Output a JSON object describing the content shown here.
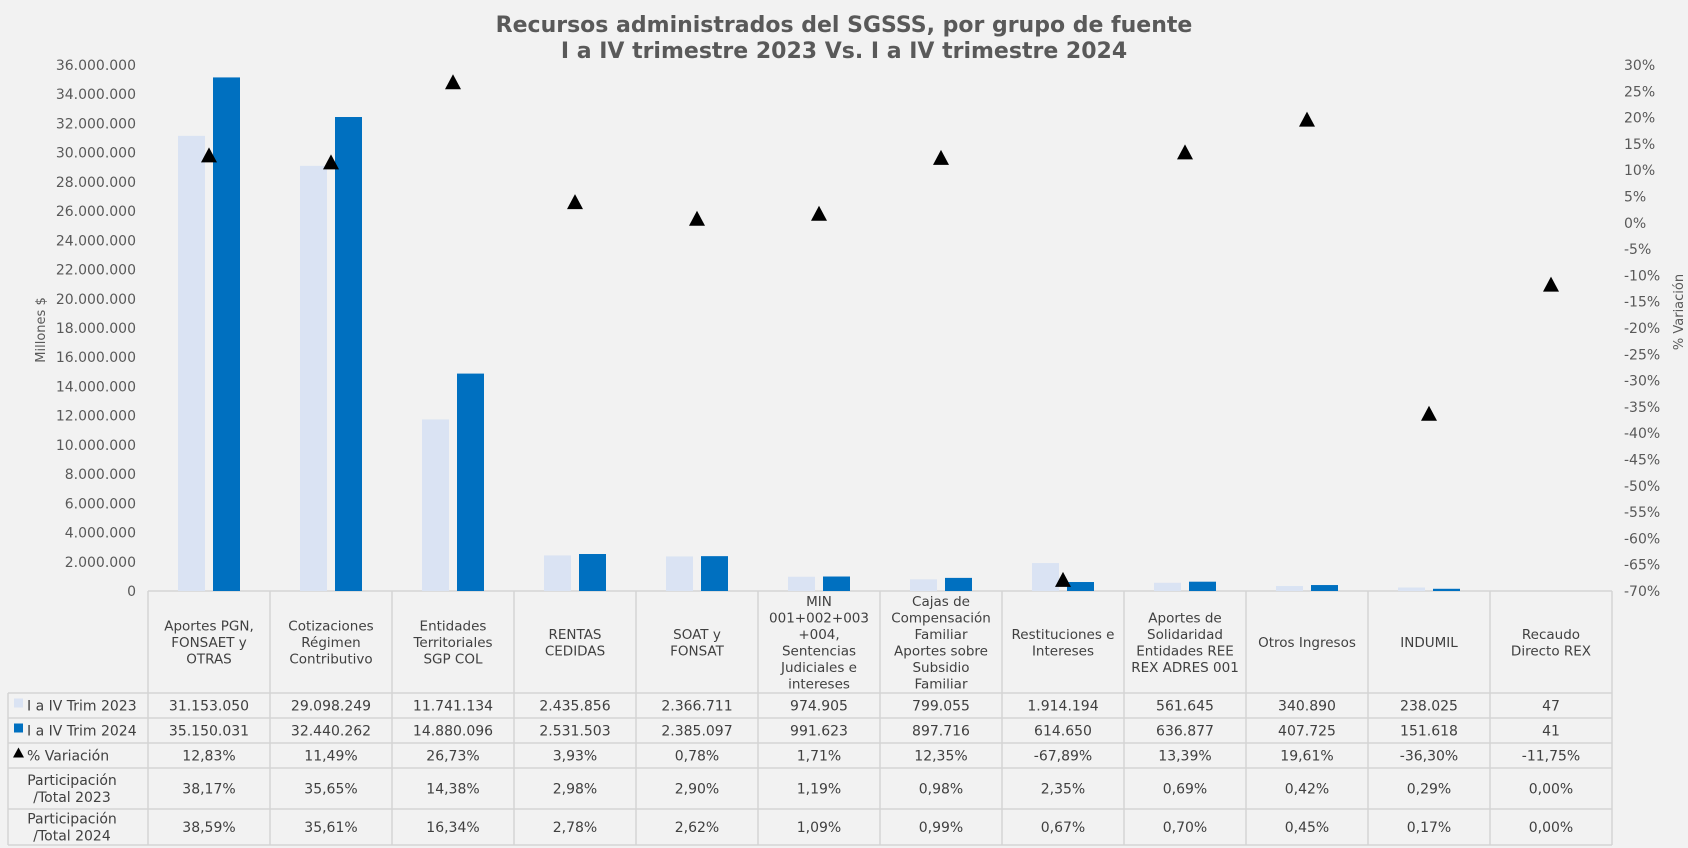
{
  "chart_data": {
    "type": "bar",
    "title": "Recursos administrados del SGSSS, por grupo de fuente",
    "subtitle": "I a IV trimestre 2023 Vs. I a IV trimestre 2024",
    "ylabel": "Millones $",
    "y2label": "% Variación",
    "ylim": [
      0,
      36000000
    ],
    "y2lim": [
      -70,
      30
    ],
    "yticks": [
      "0",
      "2.000.000",
      "4.000.000",
      "6.000.000",
      "8.000.000",
      "10.000.000",
      "12.000.000",
      "14.000.000",
      "16.000.000",
      "18.000.000",
      "20.000.000",
      "22.000.000",
      "24.000.000",
      "26.000.000",
      "28.000.000",
      "30.000.000",
      "32.000.000",
      "34.000.000",
      "36.000.000"
    ],
    "y2ticks": [
      "-70%",
      "-65%",
      "-60%",
      "-55%",
      "-50%",
      "-45%",
      "-40%",
      "-35%",
      "-30%",
      "-25%",
      "-20%",
      "-15%",
      "-10%",
      "-5%",
      "0%",
      "5%",
      "10%",
      "15%",
      "20%",
      "25%",
      "30%"
    ],
    "categories": [
      [
        "Aportes PGN,",
        "FONSAET y",
        "OTRAS"
      ],
      [
        "Cotizaciones",
        "Régimen",
        "Contributivo"
      ],
      [
        "Entidades",
        "Territoriales",
        "SGP COL"
      ],
      [
        "RENTAS",
        "CEDIDAS"
      ],
      [
        "SOAT y",
        "FONSAT"
      ],
      [
        "MIN",
        "001+002+003",
        "+004,",
        "Sentencias",
        "Judiciales e",
        "intereses"
      ],
      [
        "Cajas de",
        "Compensación",
        "Familiar",
        "Aportes sobre",
        "Subsidio",
        "Familiar"
      ],
      [
        "Restituciones e",
        "Intereses"
      ],
      [
        "Aportes de",
        "Solidaridad",
        "Entidades REE",
        "REX ADRES 001"
      ],
      [
        "Otros Ingresos"
      ],
      [
        "INDUMIL"
      ],
      [
        "Recaudo",
        "Directo REX"
      ]
    ],
    "series": [
      {
        "name": "I a IV Trim 2023",
        "color": "#dae3f3",
        "values": [
          31153050,
          29098249,
          11741134,
          2435856,
          2366711,
          974905,
          799055,
          1914194,
          561645,
          340890,
          238025,
          47
        ],
        "labels": [
          "31.153.050",
          "29.098.249",
          "11.741.134",
          "2.435.856",
          "2.366.711",
          "974.905",
          "799.055",
          "1.914.194",
          "561.645",
          "340.890",
          "238.025",
          "47"
        ]
      },
      {
        "name": "I a IV Trim  2024",
        "color": "#0070c0",
        "values": [
          35150031,
          32440262,
          14880096,
          2531503,
          2385097,
          991623,
          897716,
          614650,
          636877,
          407725,
          151618,
          41
        ],
        "labels": [
          "35.150.031",
          "32.440.262",
          "14.880.096",
          "2.531.503",
          "2.385.097",
          "991.623",
          "897.716",
          "614.650",
          "636.877",
          "407.725",
          "151.618",
          "41"
        ]
      },
      {
        "name": "% Variación",
        "color": "#000000",
        "values": [
          12.83,
          11.49,
          26.73,
          3.93,
          0.78,
          1.71,
          12.35,
          -67.89,
          13.39,
          19.61,
          -36.3,
          -11.75
        ],
        "labels": [
          "12,83%",
          "11,49%",
          "26,73%",
          "3,93%",
          "0,78%",
          "1,71%",
          "12,35%",
          "-67,89%",
          "13,39%",
          "19,61%",
          "-36,30%",
          "-11,75%"
        ]
      }
    ],
    "extra_rows": [
      {
        "name": [
          "Participación",
          "/Total 2023"
        ],
        "labels": [
          "38,17%",
          "35,65%",
          "14,38%",
          "2,98%",
          "2,90%",
          "1,19%",
          "0,98%",
          "2,35%",
          "0,69%",
          "0,42%",
          "0,29%",
          "0,00%"
        ]
      },
      {
        "name": [
          "Participación",
          "/Total 2024"
        ],
        "labels": [
          "38,59%",
          "35,61%",
          "16,34%",
          "2,78%",
          "2,62%",
          "1,09%",
          "0,99%",
          "0,67%",
          "0,70%",
          "0,45%",
          "0,17%",
          "0,00%"
        ]
      }
    ]
  }
}
